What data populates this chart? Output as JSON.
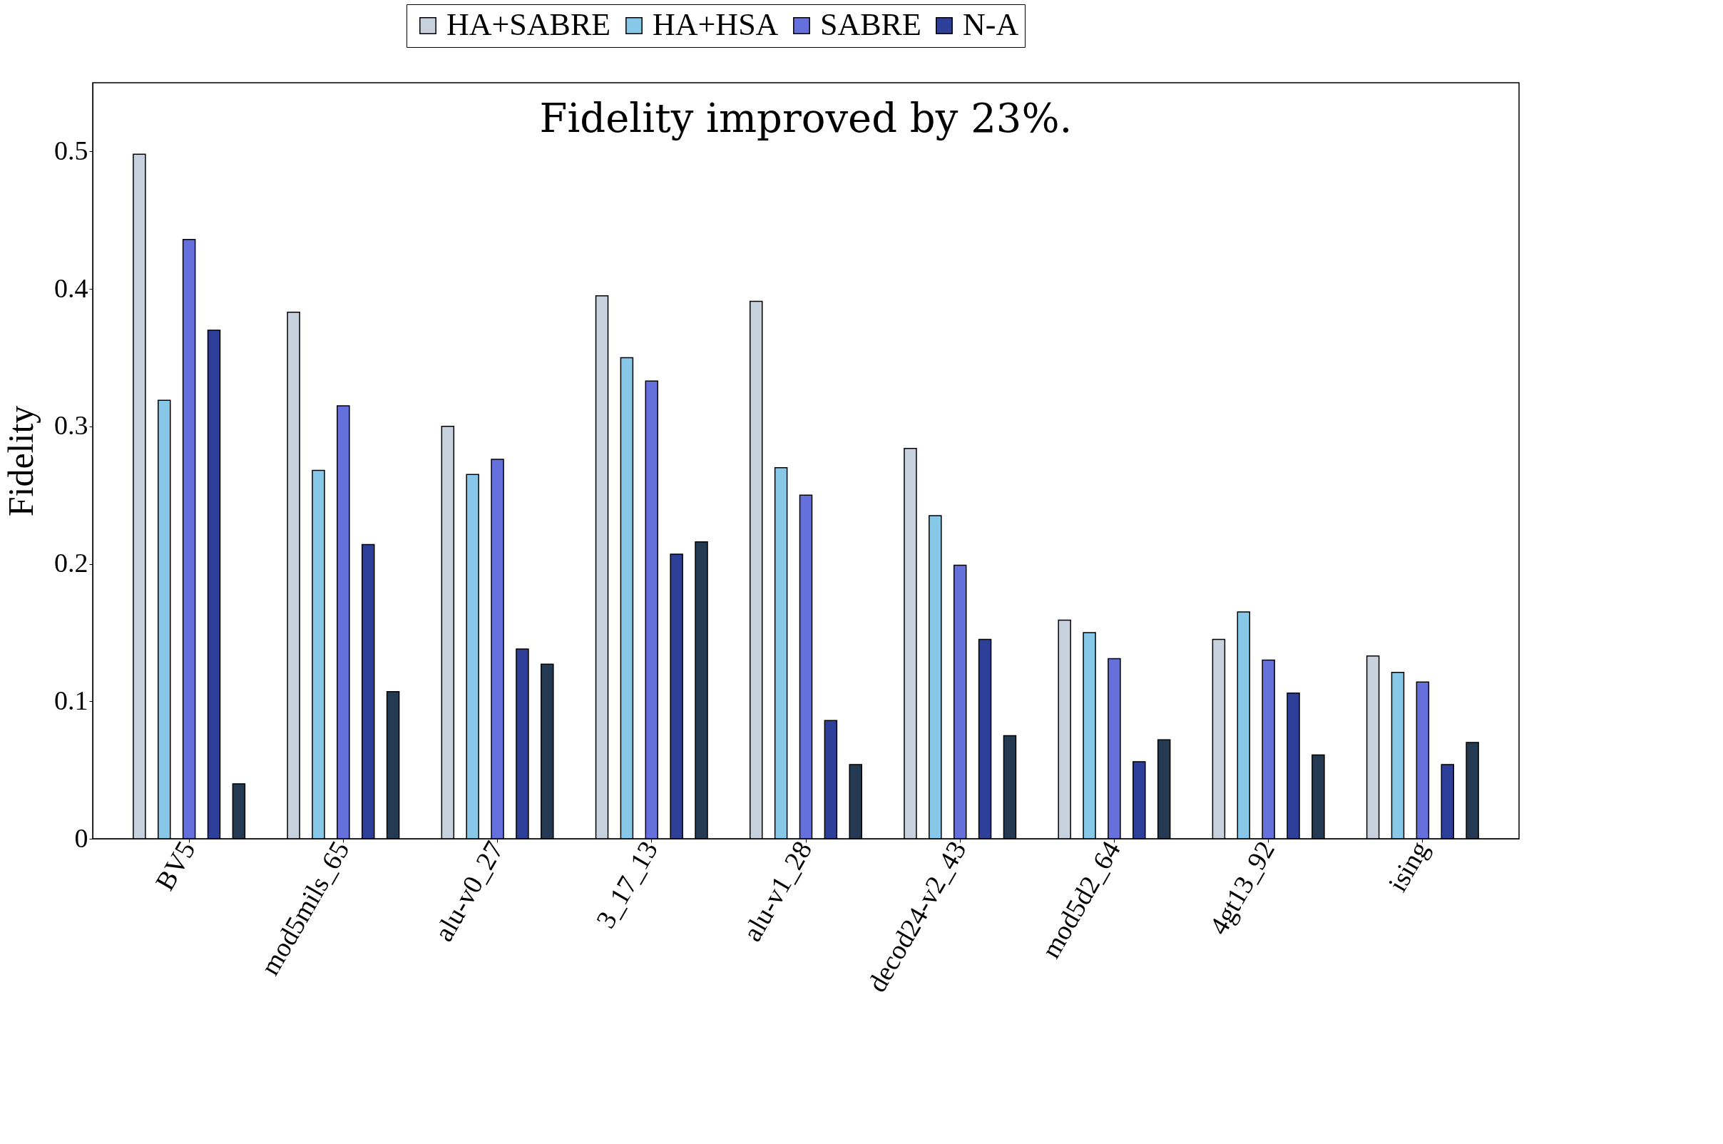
{
  "chart_data": {
    "type": "bar",
    "ylabel": "Fidelity",
    "annotations": [
      "Fidelity improved by 23%."
    ],
    "categories": [
      "BV5",
      "mod5mils_65",
      "alu-v0_27",
      "3_17_13",
      "alu-v1_28",
      "decod24-v2_43",
      "mod5d2_64",
      "4gt13_92",
      "ising"
    ],
    "series": [
      {
        "name": "HA+SABRE",
        "color": "#c8d2de",
        "values": [
          0.498,
          0.383,
          0.3,
          0.395,
          0.391,
          0.284,
          0.159,
          0.145,
          0.133
        ]
      },
      {
        "name": "HA+HSA",
        "color": "#87c8e8",
        "values": [
          0.319,
          0.268,
          0.265,
          0.35,
          0.27,
          0.235,
          0.15,
          0.165,
          0.121
        ]
      },
      {
        "name": "SABRE",
        "color": "#6670dd",
        "values": [
          0.436,
          0.315,
          0.276,
          0.333,
          0.25,
          0.199,
          0.131,
          0.13,
          0.114
        ]
      },
      {
        "name": "N-A",
        "color": "#2e3f99",
        "values": [
          0.37,
          0.214,
          0.138,
          0.207,
          0.086,
          0.145,
          0.056,
          0.106,
          0.054
        ]
      },
      {
        "color": "#243a52",
        "values": [
          0.04,
          0.107,
          0.127,
          0.216,
          0.054,
          0.075,
          0.072,
          0.061,
          0.07
        ]
      }
    ],
    "ylim": [
      0,
      0.55
    ],
    "yticks": [
      0,
      0.1,
      0.2,
      0.3,
      0.4,
      0.5
    ],
    "grid": false,
    "legend": "top"
  }
}
